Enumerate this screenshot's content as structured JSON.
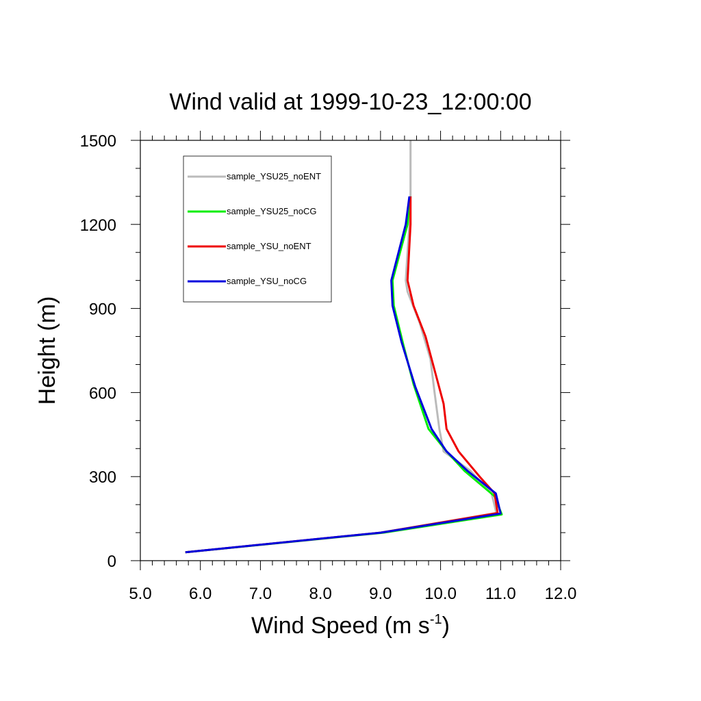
{
  "chart_data": {
    "type": "line",
    "title": "Wind valid at 1999-10-23_12:00:00",
    "xlabel_main": "Wind Speed (m s",
    "xlabel_sup": "-1",
    "xlabel_close": ")",
    "ylabel": "Height (m)",
    "xlim": [
      5.0,
      12.0
    ],
    "ylim": [
      0,
      1500
    ],
    "xticks": [
      "5.0",
      "6.0",
      "7.0",
      "8.0",
      "9.0",
      "10.0",
      "11.0",
      "12.0"
    ],
    "yticks": [
      "0",
      "300",
      "600",
      "900",
      "1200",
      "1500"
    ],
    "legend_position": "top-left",
    "series": [
      {
        "name": "sample_YSU25_noENT",
        "color": "#bbbbbb",
        "x": [
          5.75,
          9.0,
          10.93,
          10.85,
          10.5,
          10.05,
          9.98,
          9.9,
          9.83,
          9.65,
          9.45,
          9.42,
          9.48,
          9.5,
          9.5
        ],
        "y": [
          30,
          100,
          170,
          240,
          320,
          390,
          470,
          600,
          720,
          850,
          960,
          1000,
          1200,
          1300,
          1500
        ]
      },
      {
        "name": "sample_YSU25_noCG",
        "color": "#00ee00",
        "x": [
          5.75,
          9.05,
          11.02,
          10.9,
          10.4,
          10.1,
          9.8,
          9.55,
          9.38,
          9.22,
          9.2,
          9.45,
          9.5
        ],
        "y": [
          30,
          100,
          165,
          230,
          320,
          390,
          470,
          630,
          770,
          910,
          1000,
          1200,
          1300
        ]
      },
      {
        "name": "sample_YSU_noENT",
        "color": "#ee0000",
        "x": [
          5.75,
          9.0,
          10.95,
          10.9,
          10.65,
          10.3,
          10.1,
          10.05,
          9.95,
          9.75,
          9.55,
          9.45,
          9.5,
          9.5
        ],
        "y": [
          30,
          100,
          170,
          240,
          300,
          390,
          470,
          560,
          640,
          800,
          910,
          1000,
          1200,
          1300
        ]
      },
      {
        "name": "sample_YSU_noCG",
        "color": "#0000dd",
        "x": [
          5.75,
          9.0,
          11.0,
          10.92,
          10.45,
          10.1,
          9.85,
          9.58,
          9.35,
          9.2,
          9.18,
          9.42,
          9.48
        ],
        "y": [
          30,
          100,
          168,
          240,
          320,
          390,
          470,
          620,
          780,
          910,
          1000,
          1200,
          1300
        ]
      }
    ]
  }
}
